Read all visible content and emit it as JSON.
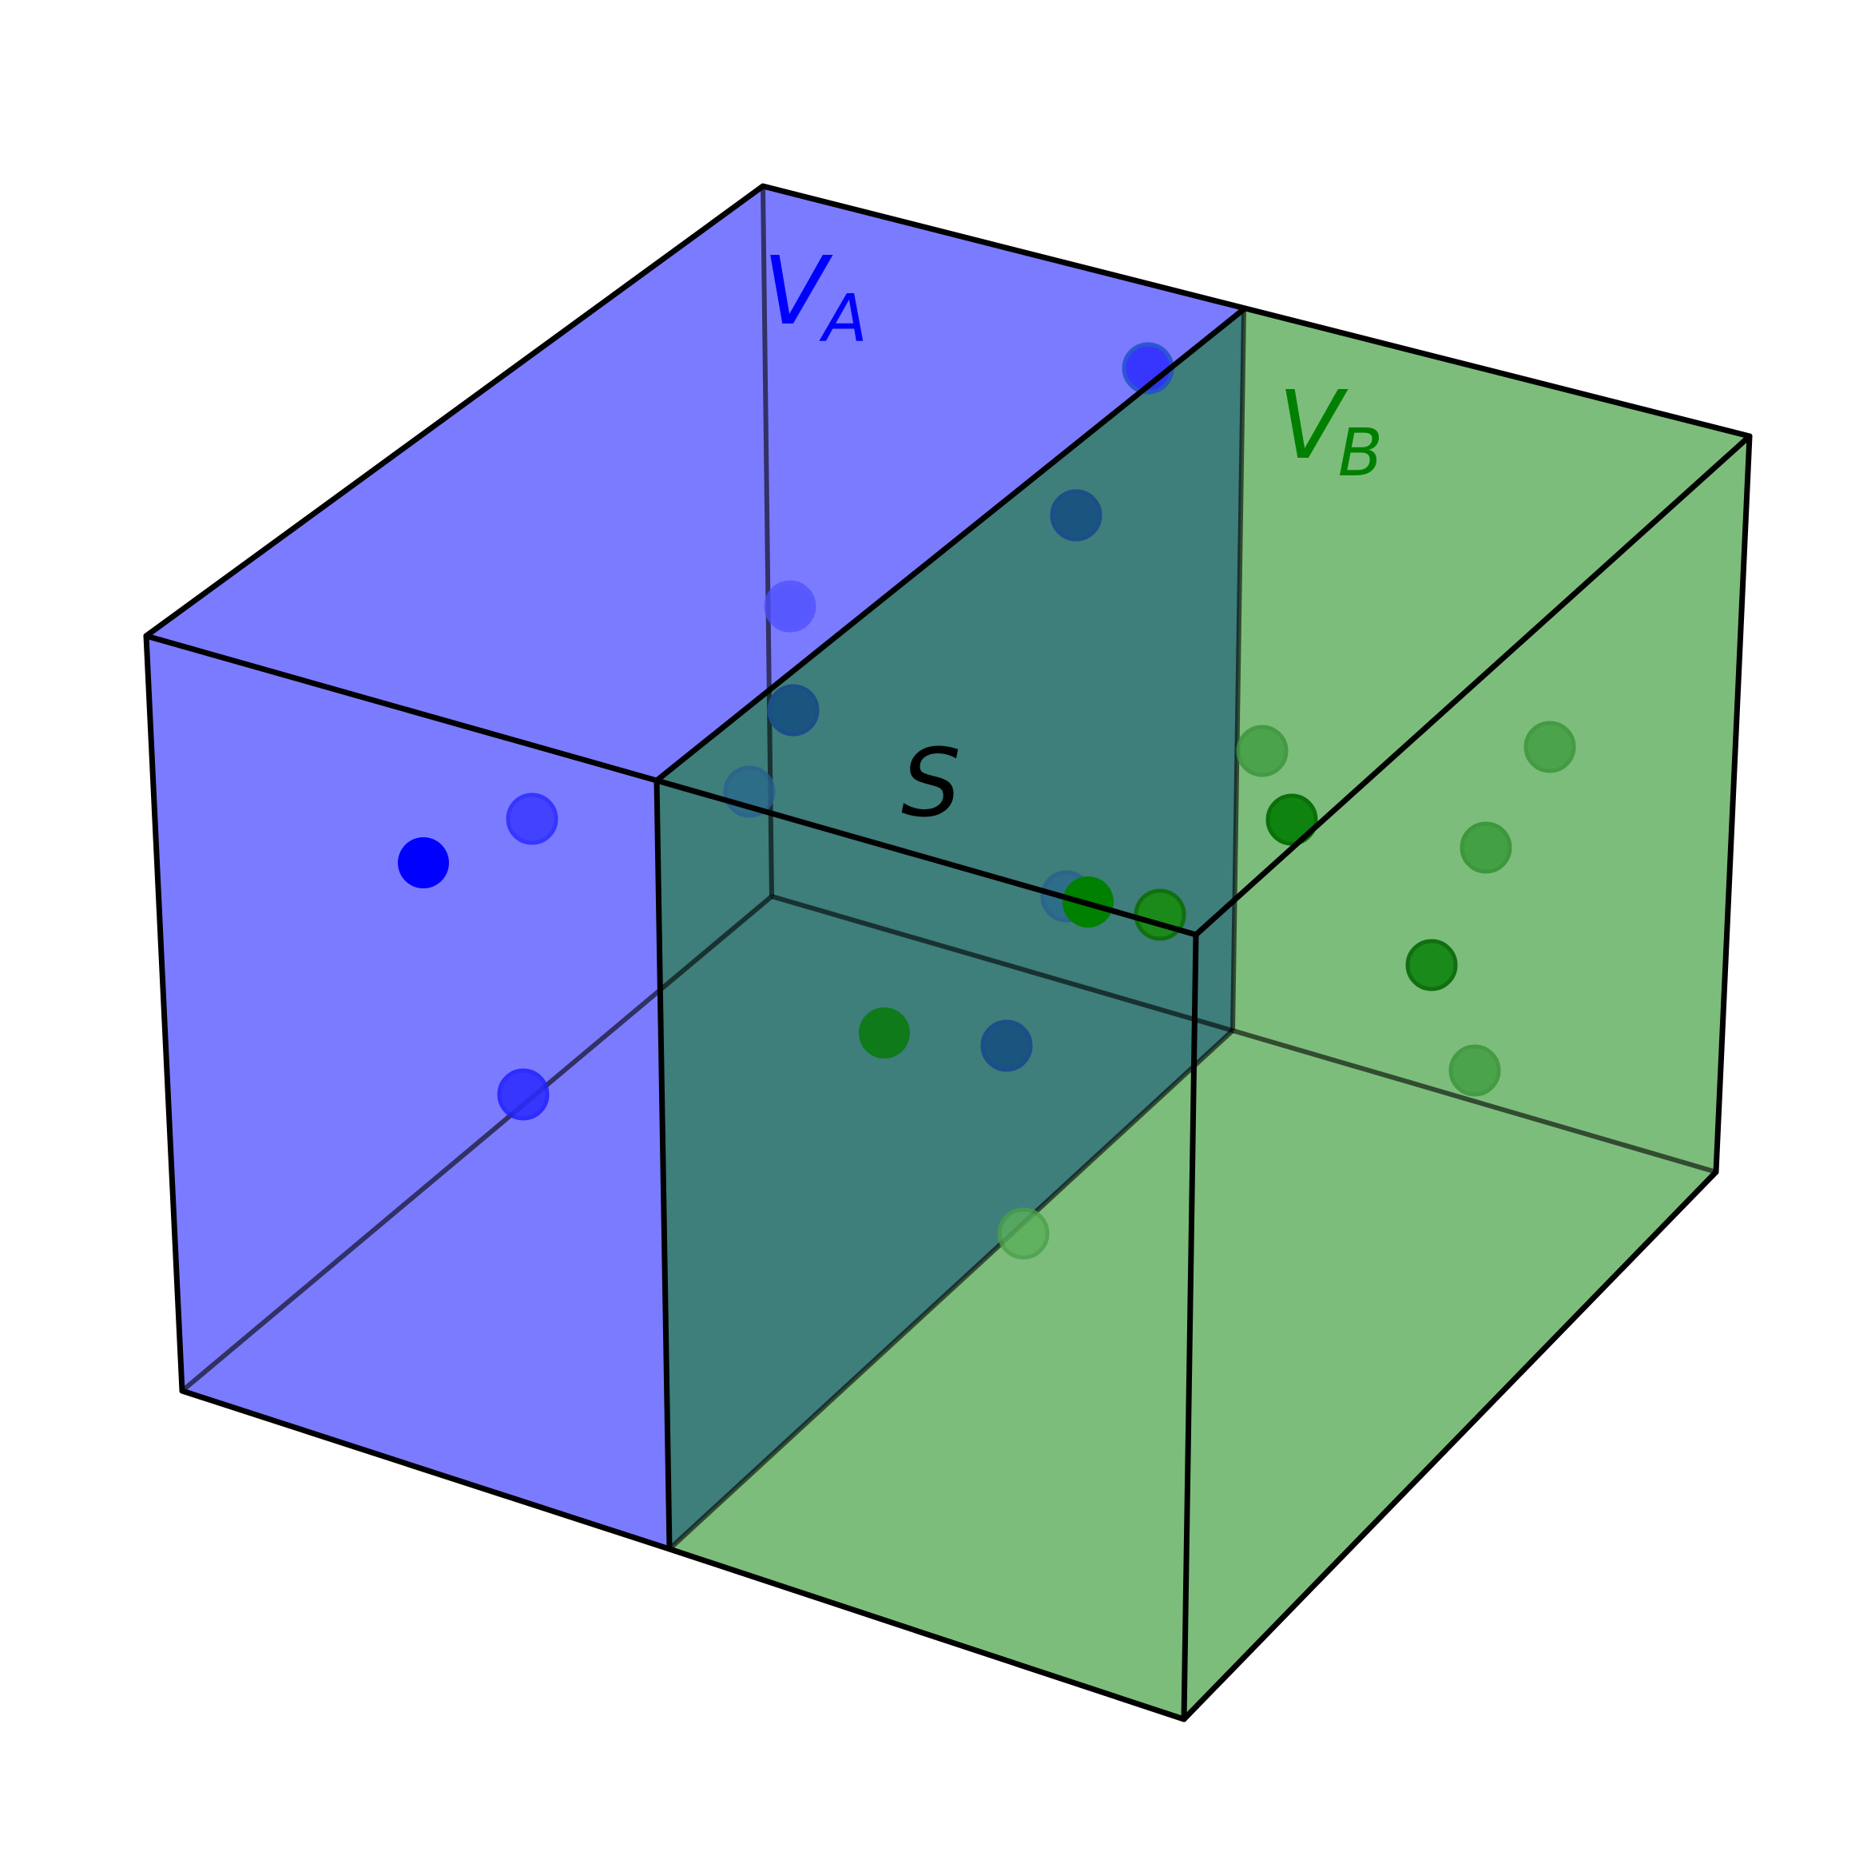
{
  "labels": {
    "va_main": "V",
    "va_sub": "A",
    "vb_main": "V",
    "vb_sub": "B",
    "surface": "S"
  },
  "colors": {
    "region_a": "#0000ff",
    "region_b": "#008000",
    "edge": "#000000",
    "surface_label": "#000000"
  }
}
